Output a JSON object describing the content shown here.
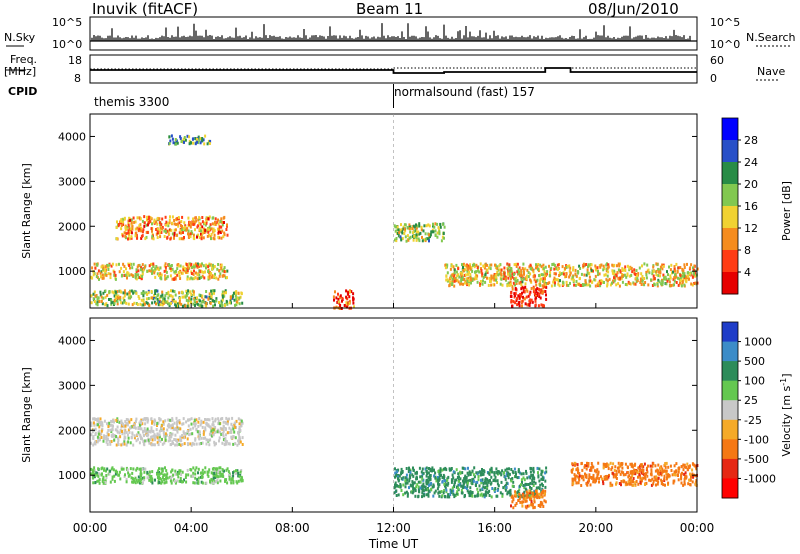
{
  "header": {
    "station": "Inuvik (fitACF)",
    "beam": "Beam 11",
    "date": "08/Jun/2010"
  },
  "top_panel": {
    "nsky_label": "N.Sky",
    "nsearch_label": "N.Search",
    "freq_label": "Freq.",
    "freq_unit": "[MHz]",
    "nave_label": "Nave",
    "cpid_label": "CPID",
    "nsky_ticks": [
      "10^5",
      "10^0"
    ],
    "nsearch_ticks": [
      "10^5",
      "10^0"
    ],
    "freq_ticks": [
      "18",
      "8"
    ],
    "nave_ticks": [
      "60",
      "0"
    ],
    "cpid_segments": [
      {
        "label": "themis 3300",
        "start_hour": 0,
        "end_hour": 12
      },
      {
        "label": "normalsound (fast) 157",
        "start_hour": 12,
        "end_hour": 24
      }
    ]
  },
  "chart_data": [
    {
      "type": "heatmap",
      "parameter": "Power",
      "ylabel": "Slant Range [km]",
      "ylim": [
        180,
        4500
      ],
      "yticks": [
        "1000",
        "2000",
        "3000",
        "4000"
      ],
      "colorbar_label": "Power [dB]",
      "colorbar_ticks": [
        "4",
        "8",
        "12",
        "16",
        "20",
        "24",
        "28"
      ],
      "colorbar_colors": [
        "#0000ff",
        "#2850c8",
        "#288c46",
        "#82c850",
        "#f0d232",
        "#f58c1e",
        "#ff3c14",
        "#e60000"
      ],
      "regions": [
        {
          "t0": 1.0,
          "t1": 5.4,
          "r0": 1750,
          "r1": 2250,
          "level": 0.7
        },
        {
          "t0": 0.0,
          "t1": 5.4,
          "r0": 850,
          "r1": 1200,
          "level": 0.6
        },
        {
          "t0": 0.0,
          "t1": 6.0,
          "r0": 250,
          "r1": 600,
          "level": 0.45
        },
        {
          "t0": 3.0,
          "t1": 4.8,
          "r0": 3850,
          "r1": 4050,
          "level": 0.35
        },
        {
          "t0": 9.6,
          "t1": 10.4,
          "r0": 200,
          "r1": 600,
          "level": 0.85
        },
        {
          "t0": 16.6,
          "t1": 18.0,
          "r0": 250,
          "r1": 700,
          "level": 0.95
        },
        {
          "t0": 14.0,
          "t1": 24.0,
          "r0": 700,
          "r1": 1200,
          "level": 0.6
        },
        {
          "t0": 12.0,
          "t1": 14.0,
          "r0": 1700,
          "r1": 2100,
          "level": 0.45
        }
      ]
    },
    {
      "type": "heatmap",
      "parameter": "Velocity",
      "xlabel": "Time UT",
      "ylabel": "Slant Range [km]",
      "xlim": [
        0,
        24
      ],
      "xticks": [
        "00:00",
        "04:00",
        "08:00",
        "12:00",
        "16:00",
        "20:00",
        "00:00"
      ],
      "ylim": [
        180,
        4500
      ],
      "yticks": [
        "1000",
        "2000",
        "3000",
        "4000"
      ],
      "colorbar_label": "Velocity [m s^-1]",
      "colorbar_title_main": "Velocity",
      "colorbar_title_unit": "m s",
      "colorbar_title_exp": "-1",
      "colorbar_ticks": [
        "1000",
        "500",
        "100",
        "25",
        "-25",
        "-100",
        "-500",
        "-1000"
      ],
      "colorbar_colors": [
        "#1e3cc8",
        "#3c8cc8",
        "#2d8c5a",
        "#64c850",
        "#c8c8c8",
        "#f5aa28",
        "#f57814",
        "#e62814",
        "#ff0000"
      ],
      "regions": [
        {
          "t0": 0.0,
          "t1": 6.0,
          "r0": 1700,
          "r1": 2300,
          "class": "-25..25"
        },
        {
          "t0": 12.0,
          "t1": 18.0,
          "r0": 550,
          "r1": 1200,
          "class": "100..500"
        },
        {
          "t0": 16.6,
          "t1": 18.0,
          "r0": 300,
          "r1": 700,
          "class": "-500..-100"
        },
        {
          "t0": 19.0,
          "t1": 24.0,
          "r0": 800,
          "r1": 1300,
          "class": "-500..-100"
        },
        {
          "t0": 0.0,
          "t1": 6.0,
          "r0": 850,
          "r1": 1200,
          "class": "25..100"
        }
      ]
    }
  ]
}
